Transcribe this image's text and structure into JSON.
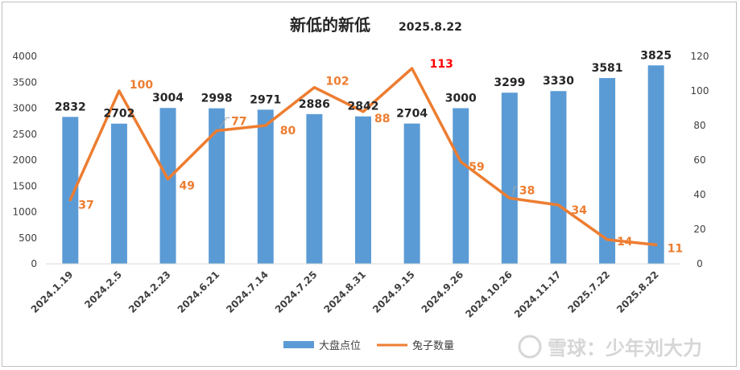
{
  "chart_data": {
    "type": "bar",
    "title": "新低的新低",
    "subtitle": "2025.8.22",
    "categories": [
      "2024.1.19",
      "2024.2.5",
      "2024.2.23",
      "2024.6.21",
      "2024.7.14",
      "2024.7.25",
      "2024.8.31",
      "2024.9.15",
      "2024.9.26",
      "2024.10.26",
      "2024.11.17",
      "2025.7.22",
      "2025.8.22"
    ],
    "series": [
      {
        "name": "大盘点位",
        "type": "bar",
        "axis": "left",
        "values": [
          2832,
          2702,
          3004,
          2998,
          2971,
          2886,
          2842,
          2704,
          3000,
          3299,
          3330,
          3581,
          3825
        ]
      },
      {
        "name": "兔子数量",
        "type": "line",
        "axis": "right",
        "values": [
          37,
          100,
          49,
          77,
          80,
          102,
          88,
          113,
          59,
          38,
          34,
          14,
          11
        ]
      }
    ],
    "y_left": {
      "min": 0,
      "max": 4000,
      "ticks": [
        0,
        500,
        1000,
        1500,
        2000,
        2500,
        3000,
        3500,
        4000
      ]
    },
    "y_right": {
      "min": 0,
      "max": 120,
      "ticks": [
        0,
        20,
        40,
        60,
        80,
        100,
        120
      ]
    },
    "highlight_value": 113,
    "grid": false,
    "legend_position": "bottom"
  },
  "colors": {
    "bar": "#5b9bd5",
    "line": "#ed7d31",
    "highlight": "#ff0000"
  },
  "watermark": "雪球：少年刘大力"
}
